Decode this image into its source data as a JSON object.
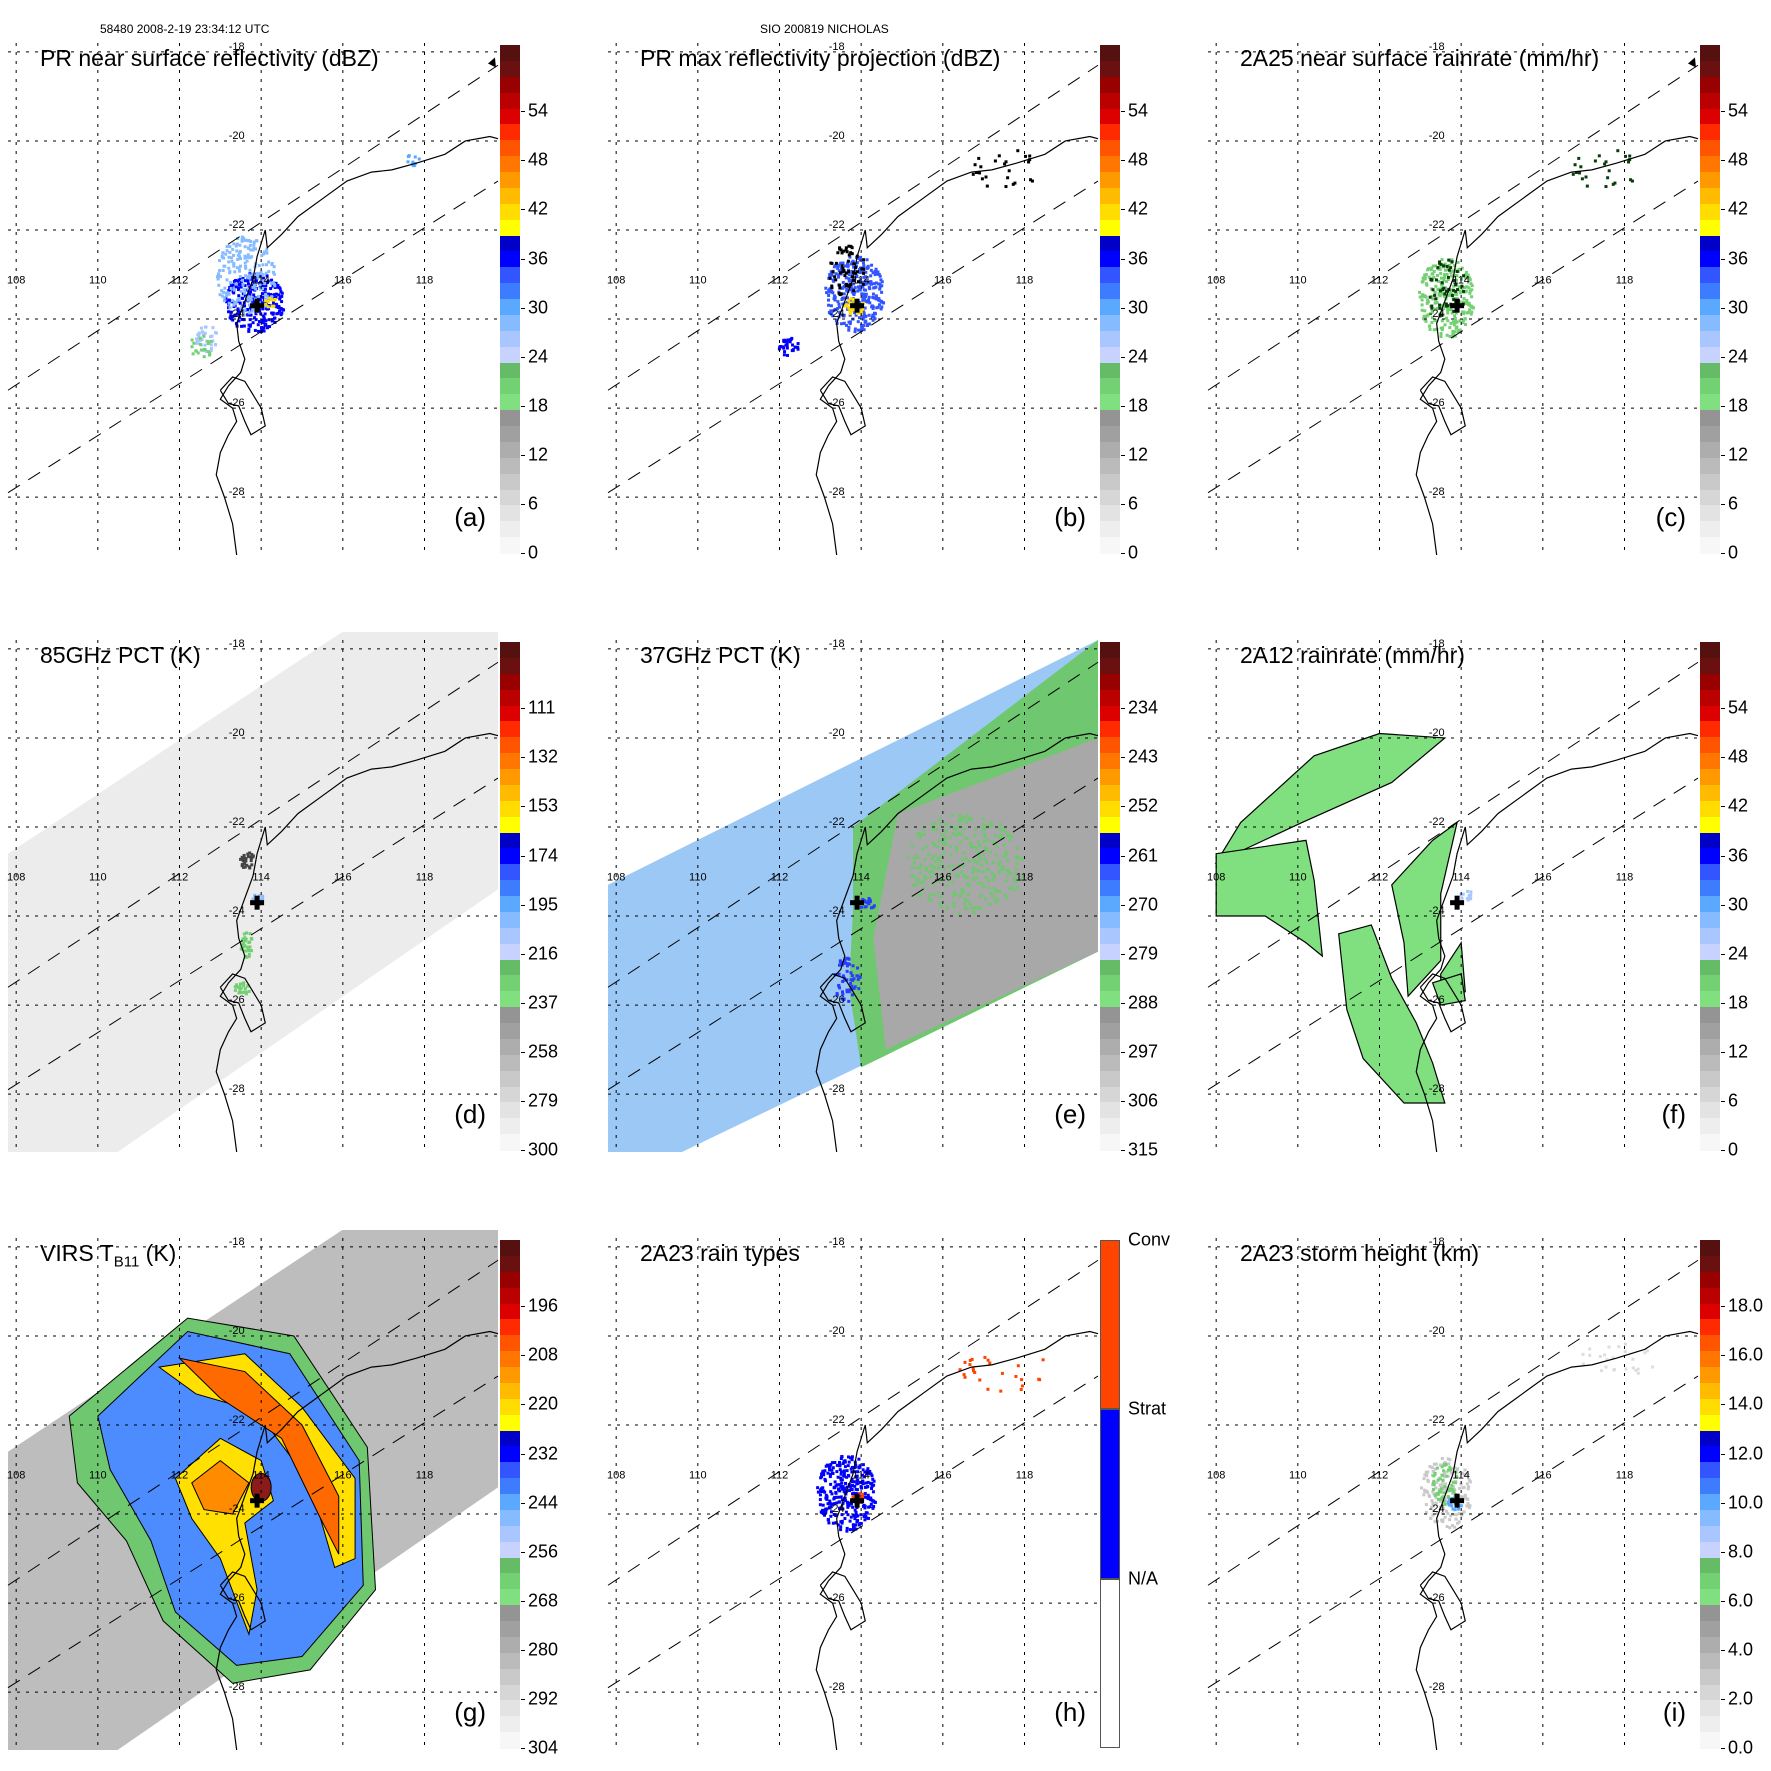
{
  "header": {
    "left": "58480 2008-2-19 23:34:12 UTC",
    "center": "SIO 200819 NICHOLAS"
  },
  "map": {
    "lon_ticks": [
      "108",
      "110",
      "112",
      "114",
      "116",
      "118"
    ],
    "lat_ticks": [
      "-18",
      "-20",
      "-22",
      "-24",
      "-26",
      "-28"
    ],
    "lon_range": [
      107.8,
      119.8
    ],
    "lat_range": [
      -17.8,
      -29.3
    ],
    "storm_center": {
      "lon": 113.9,
      "lat": -23.7
    }
  },
  "colors": {
    "ramp": [
      "#f7f7f7",
      "#eeeeee",
      "#e3e3e3",
      "#d6d6d6",
      "#c9c9c9",
      "#bbbbbb",
      "#adadad",
      "#a0a0a0",
      "#949494",
      "#80e080",
      "#73d073",
      "#66bb66",
      "#c8d2ff",
      "#a9c6ff",
      "#86bbff",
      "#5aa9ff",
      "#3d7bff",
      "#3355ff",
      "#0000ff",
      "#0000c8",
      "#ffff00",
      "#ffdd00",
      "#ffbb00",
      "#ff9900",
      "#ff7700",
      "#ff5500",
      "#ff2a00",
      "#dd0000",
      "#bb0000",
      "#990000",
      "#6b1010",
      "#551010"
    ],
    "rain_types": {
      "conv": "#ff4400",
      "strat": "#0000ff",
      "na": "#ffffff"
    }
  },
  "panels": [
    {
      "id": "a",
      "letter": "(a)",
      "title": "PR near surface reflectivity (dBZ)",
      "cb_labels": [
        "54",
        "48",
        "42",
        "36",
        "30",
        "24",
        "18",
        "12",
        "6",
        "0"
      ],
      "kind": "pr_ns"
    },
    {
      "id": "b",
      "letter": "(b)",
      "title": "PR max reflectivity projection (dBZ)",
      "cb_labels": [
        "54",
        "48",
        "42",
        "36",
        "30",
        "24",
        "18",
        "12",
        "6",
        "0"
      ],
      "kind": "pr_max"
    },
    {
      "id": "c",
      "letter": "(c)",
      "title": "2A25 near surface rainrate (mm/hr)",
      "cb_labels": [
        "54",
        "48",
        "42",
        "36",
        "30",
        "24",
        "18",
        "12",
        "6",
        "0"
      ],
      "kind": "rain25"
    },
    {
      "id": "d",
      "letter": "(d)",
      "title": "85GHz PCT (K)",
      "cb_labels": [
        "111",
        "132",
        "153",
        "174",
        "195",
        "216",
        "237",
        "258",
        "279",
        "300"
      ],
      "kind": "pct85"
    },
    {
      "id": "e",
      "letter": "(e)",
      "title": "37GHz PCT (K)",
      "cb_labels": [
        "234",
        "243",
        "252",
        "261",
        "270",
        "279",
        "288",
        "297",
        "306",
        "315"
      ],
      "kind": "pct37"
    },
    {
      "id": "f",
      "letter": "(f)",
      "title": "2A12 rainrate (mm/hr)",
      "cb_labels": [
        "54",
        "48",
        "42",
        "36",
        "30",
        "24",
        "18",
        "12",
        "6",
        "0"
      ],
      "kind": "rain12"
    },
    {
      "id": "g",
      "letter": "(g)",
      "title_main": "VIRS T",
      "title_sub": "B11",
      "title_end": " (K)",
      "cb_labels": [
        "196",
        "208",
        "220",
        "232",
        "244",
        "256",
        "268",
        "280",
        "292",
        "304"
      ],
      "kind": "virs"
    },
    {
      "id": "h",
      "letter": "(h)",
      "title": "2A23 rain types",
      "cb_labels": [
        "Conv",
        "Strat",
        "N/A"
      ],
      "kind": "types"
    },
    {
      "id": "i",
      "letter": "(i)",
      "title": "2A23 storm height (km)",
      "cb_labels": [
        "18.0",
        "16.0",
        "14.0",
        "12.0",
        "10.0",
        "8.0",
        "6.0",
        "4.0",
        "2.0",
        "0.0"
      ],
      "kind": "height"
    }
  ]
}
